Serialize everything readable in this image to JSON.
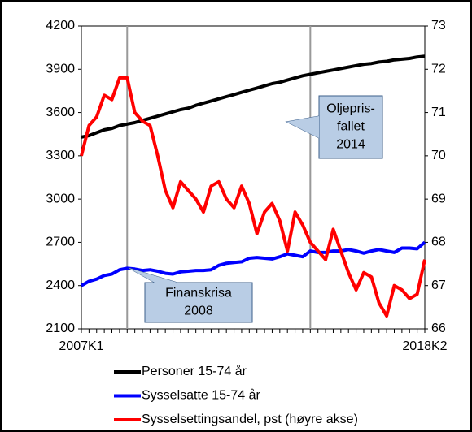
{
  "chart_data": {
    "type": "line",
    "categories": [
      "2007K1",
      null,
      null,
      null,
      null,
      null,
      null,
      null,
      null,
      null,
      null,
      null,
      null,
      null,
      null,
      null,
      null,
      null,
      null,
      null,
      null,
      null,
      null,
      null,
      null,
      null,
      null,
      null,
      null,
      null,
      null,
      null,
      null,
      null,
      null,
      null,
      null,
      null,
      null,
      null,
      null,
      null,
      null,
      null,
      null,
      "2018K2"
    ],
    "series": [
      {
        "name": "Personer 15-74 år",
        "color": "#000000",
        "axis": "y",
        "values": [
          3430,
          3440,
          3460,
          3480,
          3490,
          3510,
          3520,
          3530,
          3545,
          3560,
          3575,
          3590,
          3605,
          3620,
          3630,
          3650,
          3665,
          3680,
          3695,
          3710,
          3725,
          3740,
          3755,
          3770,
          3785,
          3800,
          3810,
          3825,
          3840,
          3855,
          3865,
          3875,
          3885,
          3895,
          3905,
          3915,
          3925,
          3935,
          3940,
          3950,
          3955,
          3965,
          3970,
          3975,
          3985,
          3990
        ]
      },
      {
        "name": "Sysselsatte 15-74 år",
        "color": "#0000ff",
        "axis": "y",
        "values": [
          2400,
          2430,
          2445,
          2470,
          2480,
          2510,
          2520,
          2515,
          2505,
          2510,
          2500,
          2485,
          2480,
          2495,
          2500,
          2505,
          2505,
          2510,
          2540,
          2555,
          2560,
          2565,
          2590,
          2595,
          2590,
          2585,
          2600,
          2620,
          2610,
          2600,
          2640,
          2630,
          2630,
          2640,
          2640,
          2650,
          2640,
          2625,
          2640,
          2650,
          2640,
          2630,
          2660,
          2660,
          2655,
          2700
        ]
      },
      {
        "name": "Sysselsettingsandel, pst (høyre akse)",
        "color": "#ff0000",
        "axis": "y2",
        "values": [
          70.0,
          70.7,
          70.9,
          71.4,
          71.3,
          71.8,
          71.8,
          71.0,
          70.8,
          70.7,
          70.0,
          69.2,
          68.8,
          69.4,
          69.2,
          69.0,
          68.7,
          69.3,
          69.4,
          69.0,
          68.8,
          69.3,
          68.9,
          68.2,
          68.7,
          68.9,
          68.5,
          67.8,
          68.7,
          68.4,
          68.0,
          67.8,
          67.6,
          68.3,
          67.8,
          67.3,
          66.9,
          67.3,
          67.2,
          66.6,
          66.3,
          67.0,
          66.9,
          66.7,
          66.8,
          67.6
        ]
      }
    ],
    "ylim": [
      2100,
      4200
    ],
    "yticks": [
      2100,
      2400,
      2700,
      3000,
      3300,
      3600,
      3900,
      4200
    ],
    "y2lim": [
      66,
      73
    ],
    "y2ticks": [
      66,
      67,
      68,
      69,
      70,
      71,
      72,
      73
    ],
    "grid": false,
    "annotations": [
      {
        "lines": [
          "Finanskrisa",
          "2008"
        ],
        "category_index": 6
      },
      {
        "lines": [
          "Oljepris-",
          "fallet",
          "2014"
        ],
        "category_index": 30
      }
    ]
  }
}
